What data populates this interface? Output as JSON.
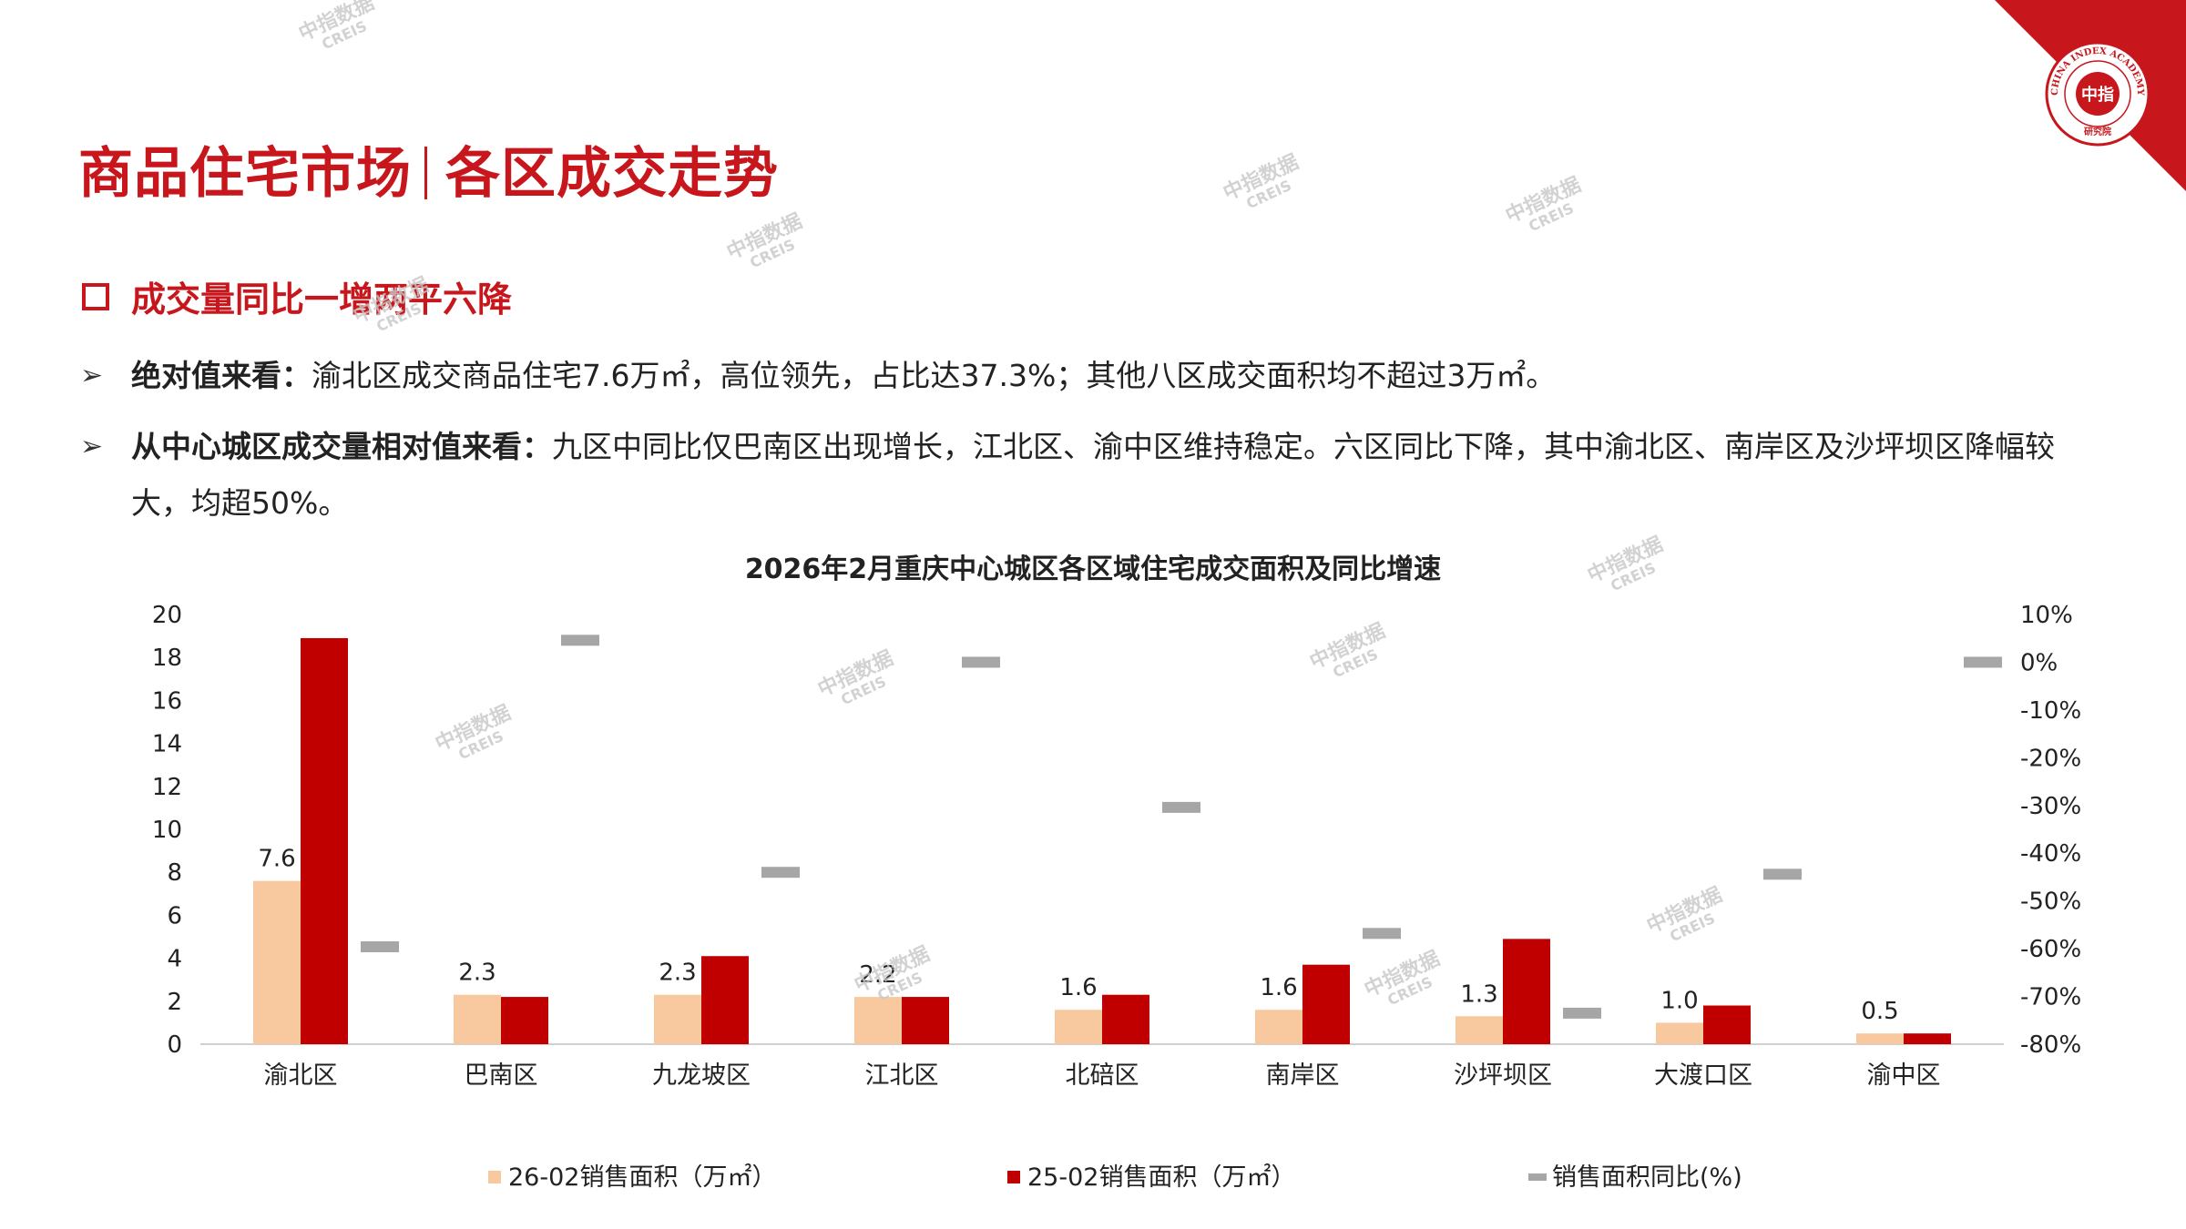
{
  "page": {
    "title_left": "商品住宅市场",
    "title_right": "各区成交走势",
    "subheading": "成交量同比一增两平六降",
    "bullets": [
      {
        "label": "绝对值来看：",
        "text": "渝北区成交商品住宅7.6万㎡，高位领先，占比达37.3%；其他八区成交面积均不超过3万㎡。"
      },
      {
        "label": "从中心城区成交量相对值来看：",
        "text": "九区中同比仅巴南区出现增长，江北区、渝中区维持稳定。六区同比下降，其中渝北区、南岸区及沙坪坝区降幅较大，均超50%。"
      }
    ],
    "logo": {
      "top_text": "CHINA INDEX ACADEMY",
      "center_text": "中指",
      "bottom_text": "研究院"
    },
    "watermark": {
      "cn": "中指数据",
      "en": "CREIS"
    }
  },
  "colors": {
    "accent": "#c8161d",
    "bar_2602": "#f8c99e",
    "bar_2502": "#c00000",
    "yoy_marker": "#a6a6a6"
  },
  "chart_data": {
    "type": "bar",
    "title": "2026年2月重庆中心城区各区域住宅成交面积及同比增速",
    "categories": [
      "渝北区",
      "巴南区",
      "九龙坡区",
      "江北区",
      "北碚区",
      "南岸区",
      "沙坪坝区",
      "大渡口区",
      "渝中区"
    ],
    "series": [
      {
        "name": "26-02销售面积（万㎡）",
        "axis": "left",
        "values": [
          7.6,
          2.3,
          2.3,
          2.2,
          1.6,
          1.6,
          1.3,
          1.0,
          0.5
        ],
        "labels": [
          "7.6",
          "2.3",
          "2.3",
          "2.2",
          "1.6",
          "1.6",
          "1.3",
          "1.0",
          "0.5"
        ]
      },
      {
        "name": "25-02销售面积（万㎡）",
        "axis": "left",
        "values": [
          18.9,
          2.2,
          4.1,
          2.2,
          2.3,
          3.7,
          4.9,
          1.8,
          0.5
        ]
      },
      {
        "name": "销售面积同比(%)",
        "axis": "right",
        "type": "marker",
        "values": [
          -59.6,
          4.6,
          -44.0,
          0.0,
          -30.4,
          -56.8,
          -73.5,
          -44.4,
          0.0
        ]
      }
    ],
    "y_left": {
      "min": 0,
      "max": 20,
      "ticks": [
        "0",
        "2",
        "4",
        "6",
        "8",
        "10",
        "12",
        "14",
        "16",
        "18",
        "20"
      ]
    },
    "y_right": {
      "min": -80,
      "max": 10,
      "ticks": [
        "-80%",
        "-70%",
        "-60%",
        "-50%",
        "-40%",
        "-30%",
        "-20%",
        "-10%",
        "0%",
        "10%"
      ]
    },
    "legend_position": "bottom",
    "grid": false
  }
}
